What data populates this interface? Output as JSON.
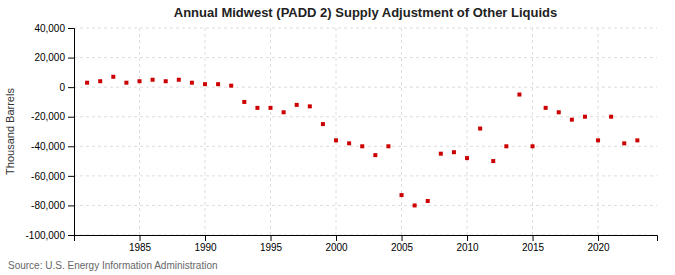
{
  "chart_data": {
    "type": "scatter",
    "title": "Annual Midwest (PADD 2) Supply Adjustment of Other Liquids",
    "ylabel": "Thousand Barrels",
    "annotations": [
      "Source: U.S. Energy Information Administration"
    ],
    "x": [
      1981,
      1982,
      1983,
      1984,
      1985,
      1986,
      1987,
      1988,
      1989,
      1990,
      1991,
      1992,
      1993,
      1994,
      1995,
      1996,
      1997,
      1998,
      1999,
      2000,
      2001,
      2002,
      2003,
      2004,
      2005,
      2006,
      2007,
      2008,
      2009,
      2010,
      2011,
      2012,
      2013,
      2014,
      2015,
      2016,
      2017,
      2018,
      2019,
      2020,
      2021,
      2022,
      2023
    ],
    "values": [
      3000,
      4000,
      7000,
      3000,
      4000,
      5000,
      4000,
      5000,
      3000,
      2000,
      2000,
      1000,
      -10000,
      -14000,
      -14000,
      -17000,
      -12000,
      -13000,
      -25000,
      -36000,
      -38000,
      -40000,
      -46000,
      -40000,
      -73000,
      -80000,
      -77000,
      -45000,
      -44000,
      -48000,
      -28000,
      -50000,
      -40000,
      -5000,
      -40000,
      -14000,
      -17000,
      -22000,
      -20000,
      -36000,
      -20000,
      -38000,
      -36000
    ],
    "color": "#cc0000",
    "marker": "square",
    "grid": true,
    "xlim": [
      1980,
      2024.5
    ],
    "ylim": [
      -100000,
      40000
    ],
    "xticks": [
      1985,
      1990,
      1995,
      2000,
      2005,
      2010,
      2015,
      2020
    ],
    "yticks": [
      {
        "value": -100000,
        "label": "-100,000"
      },
      {
        "value": -80000,
        "label": "-80,000"
      },
      {
        "value": -60000,
        "label": "-60,000"
      },
      {
        "value": -40000,
        "label": "-40,000"
      },
      {
        "value": -20000,
        "label": "-20,000"
      },
      0,
      {
        "value": 20000,
        "label": "20,000"
      },
      {
        "value": 40000,
        "label": "40,000"
      }
    ]
  }
}
